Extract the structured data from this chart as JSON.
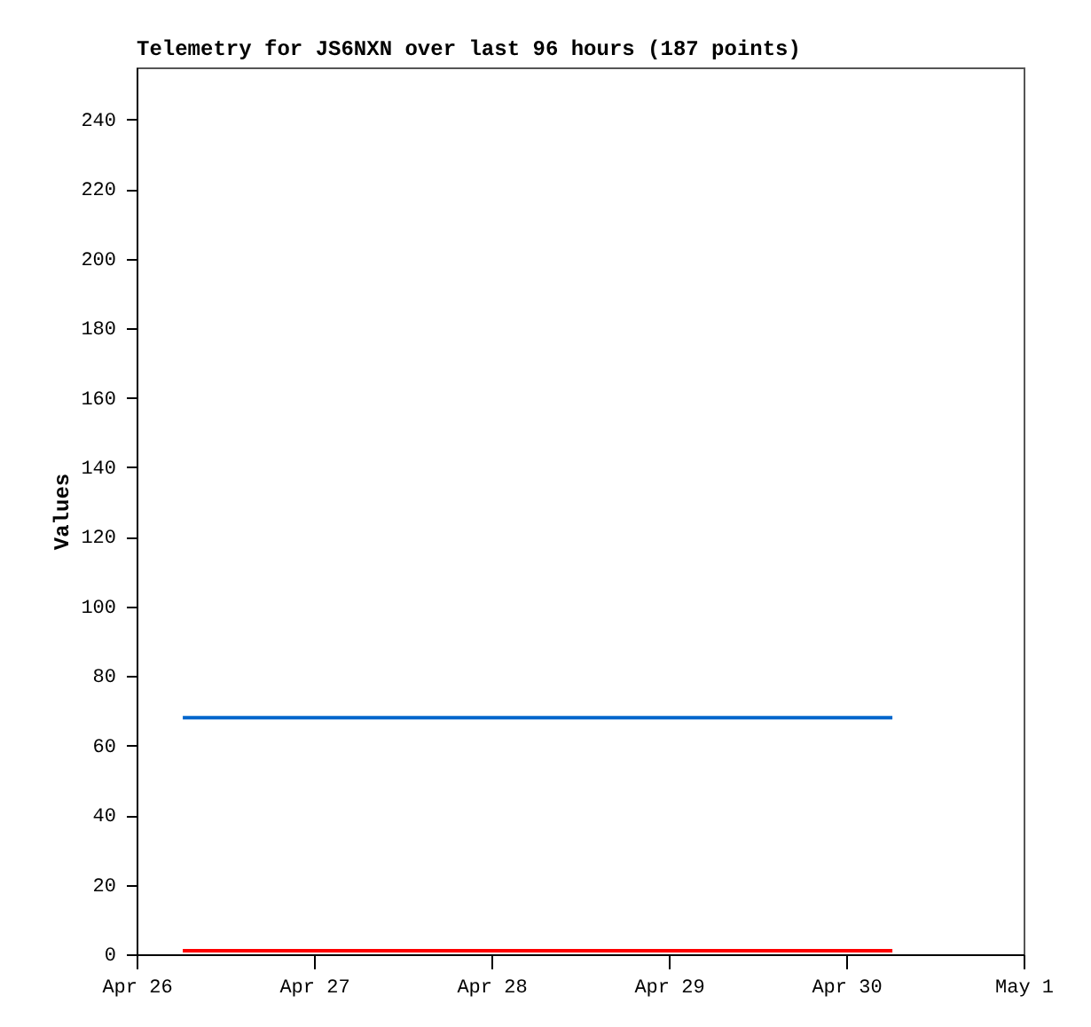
{
  "chart_data": {
    "type": "line",
    "title": "Telemetry for JS6NXN over last 96 hours (187 points)",
    "ylabel": "Values",
    "x": [
      "--04-26T06:15",
      "--04-30T06:15"
    ],
    "series": [
      {
        "color": "#0066cc",
        "values": [
          68,
          68
        ]
      },
      {
        "color": "#ff0000",
        "values": [
          1,
          1
        ]
      }
    ],
    "xlim": [
      "--04-26",
      "--05-01"
    ],
    "xticks": [
      {
        "value": "--04-26",
        "label": "Apr 26"
      },
      {
        "value": "--04-27",
        "label": "Apr 27"
      },
      {
        "value": "--04-28",
        "label": "Apr 28"
      },
      {
        "value": "--04-29",
        "label": "Apr 29"
      },
      {
        "value": "--04-30",
        "label": "Apr 30"
      },
      {
        "value": "--05-01",
        "label": "May 1"
      }
    ],
    "ylim": [
      0,
      255
    ],
    "yticks": [
      0,
      20,
      40,
      60,
      80,
      100,
      120,
      140,
      160,
      180,
      200,
      220,
      240
    ],
    "grid": false,
    "line_style": "solid",
    "marker": "none"
  }
}
